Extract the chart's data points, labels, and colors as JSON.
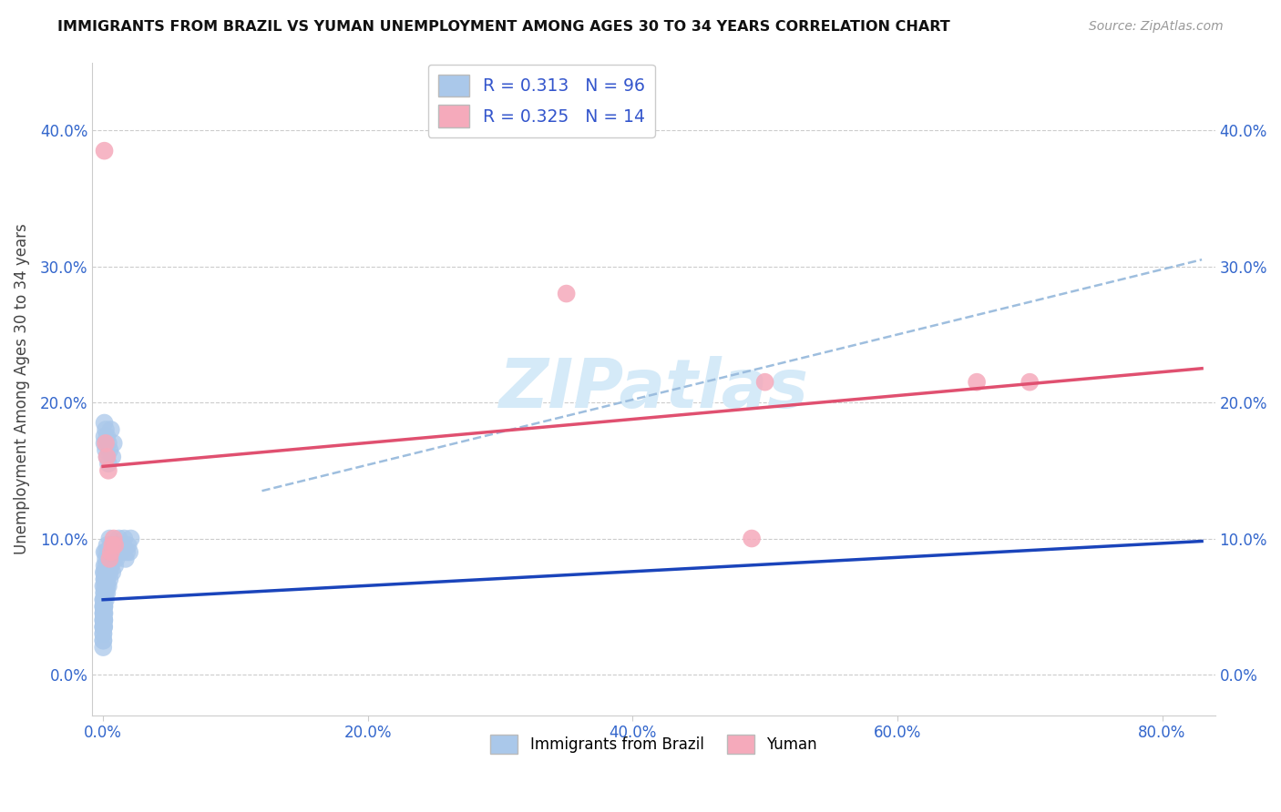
{
  "title": "IMMIGRANTS FROM BRAZIL VS YUMAN UNEMPLOYMENT AMONG AGES 30 TO 34 YEARS CORRELATION CHART",
  "source": "Source: ZipAtlas.com",
  "xlabel_ticks": [
    "0.0%",
    "20.0%",
    "40.0%",
    "60.0%",
    "80.0%"
  ],
  "xlabel_tick_vals": [
    0.0,
    0.2,
    0.4,
    0.6,
    0.8
  ],
  "ylabel_ticks": [
    "0.0%",
    "10.0%",
    "20.0%",
    "30.0%",
    "40.0%"
  ],
  "ylabel_tick_vals": [
    0.0,
    0.1,
    0.2,
    0.3,
    0.4
  ],
  "xlim": [
    -0.008,
    0.84
  ],
  "ylim": [
    -0.03,
    0.45
  ],
  "ylabel": "Unemployment Among Ages 30 to 34 years",
  "legend_label1": "Immigrants from Brazil",
  "legend_label2": "Yuman",
  "R1": "0.313",
  "N1": "96",
  "R2": "0.325",
  "N2": "14",
  "blue_scatter_color": "#aac8ea",
  "pink_scatter_color": "#f5aabb",
  "blue_line_color": "#1a44bb",
  "pink_line_color": "#e05070",
  "dashed_line_color": "#99bbdd",
  "watermark_color": "#d5eaf8",
  "grid_color": "#cccccc",
  "tick_label_color": "#3366cc",
  "title_color": "#111111",
  "source_color": "#999999",
  "brazil_x": [
    0.0002,
    0.0003,
    0.0004,
    0.0005,
    0.0006,
    0.0007,
    0.0008,
    0.0009,
    0.001,
    0.001,
    0.001,
    0.001,
    0.001,
    0.001,
    0.001,
    0.001,
    0.001,
    0.002,
    0.002,
    0.002,
    0.002,
    0.002,
    0.002,
    0.002,
    0.002,
    0.003,
    0.003,
    0.003,
    0.003,
    0.003,
    0.003,
    0.004,
    0.004,
    0.004,
    0.005,
    0.005,
    0.005,
    0.005,
    0.006,
    0.006,
    0.006,
    0.007,
    0.007,
    0.008,
    0.008,
    0.009,
    0.009,
    0.01,
    0.01,
    0.011,
    0.012,
    0.013,
    0.014,
    0.015,
    0.016,
    0.017,
    0.018,
    0.019,
    0.02,
    0.021,
    0.0001,
    0.0001,
    0.0001,
    0.0001,
    0.0001,
    0.0002,
    0.0002,
    0.0002,
    0.0002,
    0.0002,
    0.0003,
    0.0003,
    0.0003,
    0.0004,
    0.0004,
    0.0005,
    0.0005,
    0.0006,
    0.0006,
    0.0007,
    0.0008,
    0.0008,
    0.0009,
    0.001,
    0.001,
    0.001,
    0.002,
    0.002,
    0.003,
    0.003,
    0.004,
    0.004,
    0.005,
    0.006,
    0.007,
    0.008
  ],
  "brazil_y": [
    0.065,
    0.055,
    0.045,
    0.075,
    0.05,
    0.06,
    0.04,
    0.07,
    0.06,
    0.055,
    0.045,
    0.05,
    0.07,
    0.08,
    0.09,
    0.065,
    0.075,
    0.075,
    0.065,
    0.055,
    0.085,
    0.07,
    0.06,
    0.09,
    0.08,
    0.095,
    0.07,
    0.06,
    0.08,
    0.065,
    0.075,
    0.065,
    0.085,
    0.09,
    0.08,
    0.07,
    0.075,
    0.1,
    0.085,
    0.095,
    0.08,
    0.09,
    0.075,
    0.085,
    0.095,
    0.08,
    0.09,
    0.085,
    0.095,
    0.09,
    0.1,
    0.095,
    0.09,
    0.095,
    0.1,
    0.085,
    0.09,
    0.095,
    0.09,
    0.1,
    0.04,
    0.03,
    0.02,
    0.05,
    0.035,
    0.045,
    0.025,
    0.055,
    0.035,
    0.025,
    0.05,
    0.03,
    0.04,
    0.045,
    0.035,
    0.05,
    0.04,
    0.045,
    0.035,
    0.04,
    0.05,
    0.035,
    0.04,
    0.17,
    0.185,
    0.175,
    0.18,
    0.165,
    0.175,
    0.16,
    0.17,
    0.155,
    0.165,
    0.18,
    0.16,
    0.17
  ],
  "yuman_x": [
    0.001,
    0.002,
    0.003,
    0.004,
    0.005,
    0.006,
    0.007,
    0.008,
    0.009,
    0.35,
    0.49,
    0.5,
    0.66,
    0.7
  ],
  "yuman_y": [
    0.385,
    0.17,
    0.16,
    0.15,
    0.085,
    0.09,
    0.095,
    0.1,
    0.095,
    0.28,
    0.1,
    0.215,
    0.215,
    0.215
  ],
  "blue_line_x0": 0.0,
  "blue_line_y0": 0.055,
  "blue_line_x1": 0.83,
  "blue_line_y1": 0.098,
  "pink_line_x0": 0.0,
  "pink_line_y0": 0.153,
  "pink_line_x1": 0.83,
  "pink_line_y1": 0.225,
  "dash_line_x0": 0.12,
  "dash_line_y0": 0.135,
  "dash_line_x1": 0.83,
  "dash_line_y1": 0.305
}
